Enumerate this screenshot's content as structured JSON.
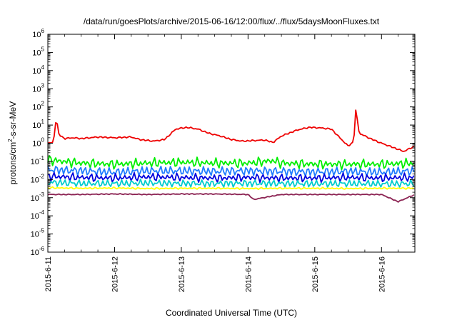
{
  "chart_data": {
    "type": "line",
    "title": "/data/run/goesPlots/archive/2015-06-16/12:00/flux/../flux/5daysMoonFluxes.txt",
    "xlabel": "Coordinated Universal Time (UTC)",
    "ylabel": {
      "base": "protons/cm",
      "sup": "2",
      "rest": "-s-sr-MeV"
    },
    "x_range": [
      "2015-06-11T00:00",
      "2015-06-16T12:00"
    ],
    "x_ticks": [
      "2015-6-11",
      "2015-6-12",
      "2015-6-13",
      "2015-6-14",
      "2015-6-15",
      "2015-6-16"
    ],
    "y_scale": "log",
    "ylim": [
      1e-06,
      1000000.0
    ],
    "y_ticks": [
      {
        "base": "10",
        "exp": "-6"
      },
      {
        "base": "10",
        "exp": "-5"
      },
      {
        "base": "10",
        "exp": "-4"
      },
      {
        "base": "10",
        "exp": "-3"
      },
      {
        "base": "10",
        "exp": "-2"
      },
      {
        "base": "10",
        "exp": "-1"
      },
      {
        "base": "10",
        "exp": "0"
      },
      {
        "base": "10",
        "exp": "1"
      },
      {
        "base": "10",
        "exp": "2"
      },
      {
        "base": "10",
        "exp": "3"
      },
      {
        "base": "10",
        "exp": "4"
      },
      {
        "base": "10",
        "exp": "5"
      },
      {
        "base": "10",
        "exp": "6"
      }
    ],
    "grid": false,
    "legend": "none",
    "series": [
      {
        "color": "#ee0000",
        "x": [
          "2015-06-11T00:00",
          "2015-06-11T02:00",
          "2015-06-11T03:00",
          "2015-06-11T04:00",
          "2015-06-11T06:00",
          "2015-06-11T09:00",
          "2015-06-11T12:00",
          "2015-06-11T18:00",
          "2015-06-12T00:00",
          "2015-06-12T06:00",
          "2015-06-12T09:00",
          "2015-06-12T14:00",
          "2015-06-12T18:00",
          "2015-06-12T22:00",
          "2015-06-13T02:00",
          "2015-06-13T06:00",
          "2015-06-13T10:00",
          "2015-06-13T14:00",
          "2015-06-13T18:00",
          "2015-06-13T22:00",
          "2015-06-14T02:00",
          "2015-06-14T06:00",
          "2015-06-14T09:00",
          "2015-06-14T12:00",
          "2015-06-14T18:00",
          "2015-06-14T22:00",
          "2015-06-15T02:00",
          "2015-06-15T06:00",
          "2015-06-15T09:00",
          "2015-06-15T12:00",
          "2015-06-15T14:00",
          "2015-06-15T14:45",
          "2015-06-15T16:00",
          "2015-06-15T20:00",
          "2015-06-16T00:00",
          "2015-06-16T04:00",
          "2015-06-16T08:00",
          "2015-06-16T12:00"
        ],
        "y": [
          1.0,
          1.1,
          25,
          3,
          1.8,
          2.0,
          1.8,
          2.2,
          2.0,
          2.2,
          1.6,
          1.3,
          1.6,
          6.0,
          7.5,
          6.0,
          3.5,
          2.5,
          1.6,
          1.3,
          1.4,
          1.5,
          1.1,
          2.5,
          5.5,
          7.5,
          7.0,
          6.0,
          2.0,
          0.7,
          1.2,
          70,
          3.5,
          1.8,
          1.0,
          0.6,
          0.35,
          0.7
        ]
      },
      {
        "color": "#00ee00",
        "x": [
          "2015-06-11T00:00",
          "2015-06-11T12:00",
          "2015-06-12T00:00",
          "2015-06-12T12:00",
          "2015-06-13T00:00",
          "2015-06-13T12:00",
          "2015-06-14T00:00",
          "2015-06-14T09:00",
          "2015-06-14T12:00",
          "2015-06-15T00:00",
          "2015-06-15T12:00",
          "2015-06-16T00:00",
          "2015-06-16T12:00"
        ],
        "y": [
          0.12,
          0.08,
          0.07,
          0.08,
          0.09,
          0.08,
          0.08,
          0.11,
          0.08,
          0.07,
          0.07,
          0.07,
          0.08
        ]
      },
      {
        "color": "#1e7cff",
        "x": [
          "2015-06-11T00:00",
          "2015-06-11T12:00",
          "2015-06-12T00:00",
          "2015-06-12T12:00",
          "2015-06-13T00:00",
          "2015-06-13T12:00",
          "2015-06-14T00:00",
          "2015-06-14T12:00",
          "2015-06-15T00:00",
          "2015-06-15T12:00",
          "2015-06-16T00:00",
          "2015-06-16T12:00"
        ],
        "y": [
          0.035,
          0.03,
          0.025,
          0.03,
          0.03,
          0.028,
          0.03,
          0.028,
          0.026,
          0.028,
          0.025,
          0.03
        ]
      },
      {
        "color": "#0000dd",
        "x": [
          "2015-06-11T00:00",
          "2015-06-11T12:00",
          "2015-06-12T00:00",
          "2015-06-12T12:00",
          "2015-06-13T00:00",
          "2015-06-13T12:00",
          "2015-06-14T00:00",
          "2015-06-14T12:00",
          "2015-06-15T00:00",
          "2015-06-15T12:00",
          "2015-06-16T00:00",
          "2015-06-16T12:00"
        ],
        "y": [
          0.015,
          0.013,
          0.012,
          0.014,
          0.013,
          0.012,
          0.013,
          0.012,
          0.012,
          0.013,
          0.012,
          0.013
        ]
      },
      {
        "color": "#00cccc",
        "x": [
          "2015-06-11T00:00",
          "2015-06-11T12:00",
          "2015-06-12T00:00",
          "2015-06-12T12:00",
          "2015-06-13T00:00",
          "2015-06-13T12:00",
          "2015-06-14T00:00",
          "2015-06-14T12:00",
          "2015-06-15T00:00",
          "2015-06-15T12:00",
          "2015-06-16T00:00",
          "2015-06-16T12:00"
        ],
        "y": [
          0.007,
          0.006,
          0.006,
          0.0065,
          0.006,
          0.006,
          0.0062,
          0.006,
          0.0058,
          0.006,
          0.0057,
          0.006
        ]
      },
      {
        "color": "#ffff00",
        "x": [
          "2015-06-11T00:00",
          "2015-06-11T12:00",
          "2015-06-12T00:00",
          "2015-06-12T12:00",
          "2015-06-13T00:00",
          "2015-06-13T12:00",
          "2015-06-14T00:00",
          "2015-06-14T12:00",
          "2015-06-15T00:00",
          "2015-06-15T12:00",
          "2015-06-16T00:00",
          "2015-06-16T12:00"
        ],
        "y": [
          0.0035,
          0.0033,
          0.0034,
          0.0032,
          0.0033,
          0.0033,
          0.0032,
          0.0033,
          0.0033,
          0.0032,
          0.0033,
          0.0033
        ]
      },
      {
        "color": "#8b2252",
        "x": [
          "2015-06-11T00:00",
          "2015-06-11T12:00",
          "2015-06-12T00:00",
          "2015-06-12T12:00",
          "2015-06-13T00:00",
          "2015-06-13T12:00",
          "2015-06-14T00:00",
          "2015-06-14T02:00",
          "2015-06-14T12:00",
          "2015-06-15T00:00",
          "2015-06-15T12:00",
          "2015-06-16T00:00",
          "2015-06-16T06:00",
          "2015-06-16T12:00"
        ],
        "y": [
          0.0015,
          0.0015,
          0.0016,
          0.0015,
          0.0016,
          0.0016,
          0.0015,
          0.0008,
          0.0015,
          0.0015,
          0.0015,
          0.0015,
          0.0006,
          0.0015
        ]
      }
    ]
  }
}
